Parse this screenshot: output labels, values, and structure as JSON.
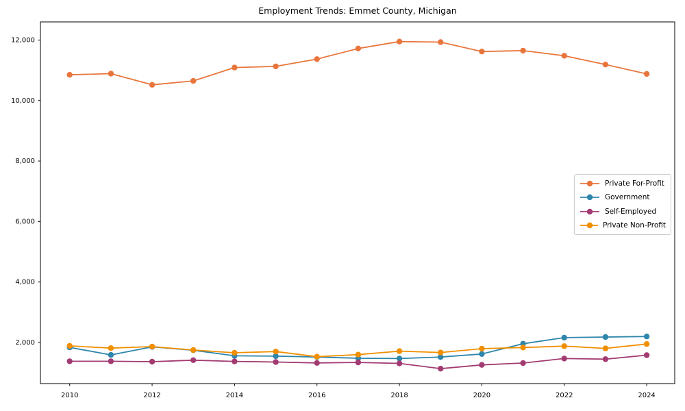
{
  "figure": {
    "background": "#ffffff",
    "plot_border_color": "#000000"
  },
  "chart_data": {
    "type": "line",
    "title": "Employment Trends: Emmet County, Michigan",
    "xlabel": "",
    "ylabel": "",
    "grid": false,
    "legend_position": "center right",
    "x": [
      2010,
      2011,
      2012,
      2013,
      2014,
      2015,
      2016,
      2017,
      2018,
      2019,
      2020,
      2021,
      2022,
      2023,
      2024
    ],
    "xtick_values": [
      2010,
      2012,
      2014,
      2016,
      2018,
      2020,
      2022,
      2024
    ],
    "xtick_labels": [
      "2010",
      "2012",
      "2014",
      "2016",
      "2018",
      "2020",
      "2022",
      "2024"
    ],
    "ytick_values": [
      2000,
      4000,
      6000,
      8000,
      10000,
      12000
    ],
    "ytick_labels": [
      "2,000",
      "4,000",
      "6,000",
      "8,000",
      "10,000",
      "12,000"
    ],
    "xlim": [
      2009.29,
      2024.68
    ],
    "ylim": [
      641,
      12599
    ],
    "series": [
      {
        "name": "Private For-Profit",
        "color": "#E8763C",
        "values": [
          10850,
          10890,
          10520,
          10650,
          11090,
          11130,
          11370,
          11720,
          11950,
          11930,
          11620,
          11650,
          11480,
          11190,
          10880
        ]
      },
      {
        "name": "Government",
        "color": "#2E86AB",
        "values": [
          1840,
          1590,
          1855,
          1745,
          1560,
          1550,
          1520,
          1480,
          1470,
          1520,
          1620,
          1960,
          2160,
          2180,
          2200
        ]
      },
      {
        "name": "Self-Employed",
        "color": "#A23B72",
        "values": [
          1380,
          1380,
          1365,
          1415,
          1375,
          1355,
          1325,
          1340,
          1310,
          1135,
          1260,
          1320,
          1470,
          1450,
          1580
        ]
      },
      {
        "name": "Private Non-Profit",
        "color": "#F18F01",
        "values": [
          1890,
          1815,
          1865,
          1750,
          1660,
          1700,
          1530,
          1600,
          1715,
          1670,
          1795,
          1835,
          1880,
          1805,
          1950
        ]
      }
    ]
  }
}
